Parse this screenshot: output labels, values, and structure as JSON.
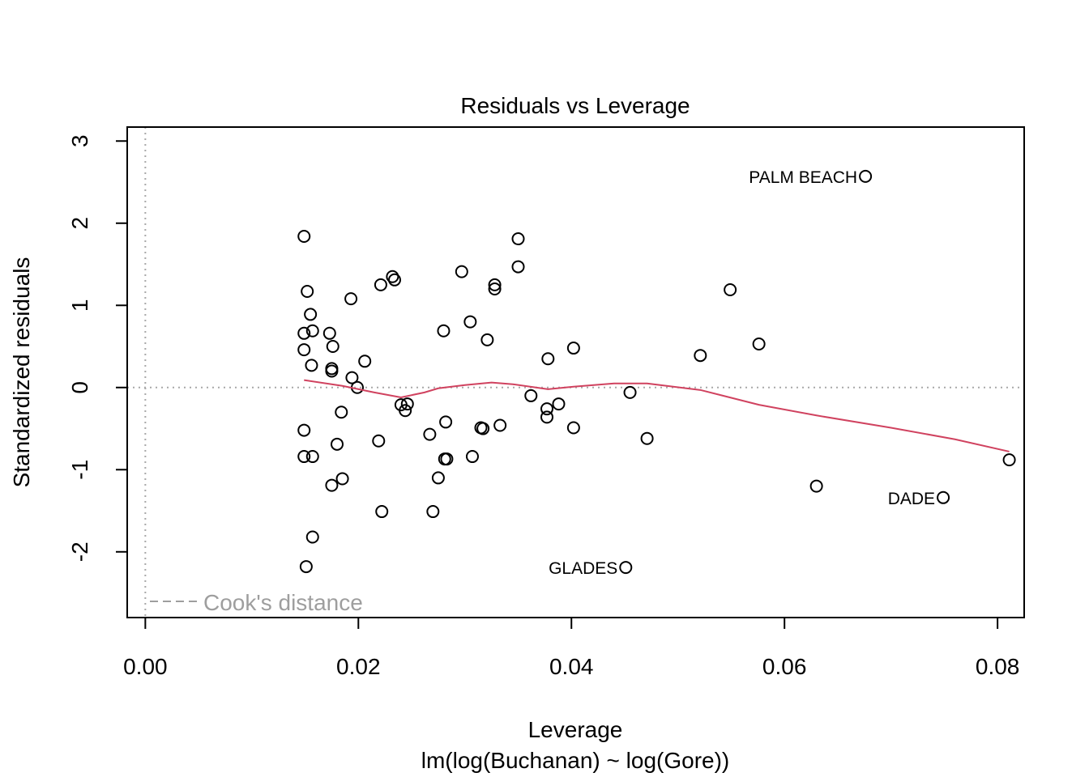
{
  "chart_data": {
    "type": "scatter",
    "title": "Residuals vs Leverage",
    "xlabel": "Leverage",
    "ylabel": "Standardized residuals",
    "subtitle": "lm(log(Buchanan) ~ log(Gore))",
    "xlim": [
      -0.0017,
      0.0825
    ],
    "ylim": [
      -2.8,
      3.17
    ],
    "x_ticks": [
      0.0,
      0.02,
      0.04,
      0.06,
      0.08
    ],
    "x_tick_labels": [
      "0.00",
      "0.02",
      "0.04",
      "0.06",
      "0.08"
    ],
    "y_ticks": [
      -2,
      -1,
      0,
      1,
      2,
      3
    ],
    "y_tick_labels": [
      "-2",
      "-1",
      "0",
      "1",
      "2",
      "3"
    ],
    "grid": false,
    "reference_lines": {
      "horizontal_y": 0,
      "vertical_x": 0,
      "style": "dotted",
      "color": "#a8a8a8"
    },
    "legend": {
      "label": "Cook's distance",
      "placement": "bottom-left",
      "color": "#9e9e9e",
      "line_style": "dashed"
    },
    "point_color": "#000000",
    "smooth_color": "#d0425f",
    "points": [
      {
        "x": 0.0149,
        "y": 1.84
      },
      {
        "x": 0.0152,
        "y": 1.17
      },
      {
        "x": 0.0155,
        "y": 0.89
      },
      {
        "x": 0.0149,
        "y": 0.66
      },
      {
        "x": 0.0157,
        "y": 0.69
      },
      {
        "x": 0.0149,
        "y": 0.46
      },
      {
        "x": 0.0156,
        "y": 0.27
      },
      {
        "x": 0.0173,
        "y": 0.66
      },
      {
        "x": 0.0176,
        "y": 0.5
      },
      {
        "x": 0.0175,
        "y": 0.23
      },
      {
        "x": 0.0175,
        "y": 0.2
      },
      {
        "x": 0.0193,
        "y": 1.08
      },
      {
        "x": 0.0206,
        "y": 0.32
      },
      {
        "x": 0.0194,
        "y": 0.12
      },
      {
        "x": 0.0199,
        "y": 0.0
      },
      {
        "x": 0.0149,
        "y": -0.52
      },
      {
        "x": 0.0149,
        "y": -0.84
      },
      {
        "x": 0.0157,
        "y": -0.84
      },
      {
        "x": 0.0184,
        "y": -0.3
      },
      {
        "x": 0.018,
        "y": -0.69
      },
      {
        "x": 0.0175,
        "y": -1.19
      },
      {
        "x": 0.0185,
        "y": -1.11
      },
      {
        "x": 0.0157,
        "y": -1.82
      },
      {
        "x": 0.0151,
        "y": -2.18
      },
      {
        "x": 0.0221,
        "y": 1.25
      },
      {
        "x": 0.0232,
        "y": 1.35
      },
      {
        "x": 0.0234,
        "y": 1.31
      },
      {
        "x": 0.0219,
        "y": -0.65
      },
      {
        "x": 0.0222,
        "y": -1.51
      },
      {
        "x": 0.024,
        "y": -0.21
      },
      {
        "x": 0.0246,
        "y": -0.2
      },
      {
        "x": 0.0244,
        "y": -0.28
      },
      {
        "x": 0.0297,
        "y": 1.41
      },
      {
        "x": 0.028,
        "y": 0.69
      },
      {
        "x": 0.0305,
        "y": 0.8
      },
      {
        "x": 0.0321,
        "y": 0.58
      },
      {
        "x": 0.0328,
        "y": 1.25
      },
      {
        "x": 0.0328,
        "y": 1.2
      },
      {
        "x": 0.035,
        "y": 1.81
      },
      {
        "x": 0.035,
        "y": 1.47
      },
      {
        "x": 0.0282,
        "y": -0.42
      },
      {
        "x": 0.0267,
        "y": -0.57
      },
      {
        "x": 0.0281,
        "y": -0.87
      },
      {
        "x": 0.0283,
        "y": -0.87
      },
      {
        "x": 0.0275,
        "y": -1.1
      },
      {
        "x": 0.027,
        "y": -1.51
      },
      {
        "x": 0.0307,
        "y": -0.84
      },
      {
        "x": 0.0315,
        "y": -0.49
      },
      {
        "x": 0.0317,
        "y": -0.5
      },
      {
        "x": 0.0333,
        "y": -0.46
      },
      {
        "x": 0.0362,
        "y": -0.1
      },
      {
        "x": 0.0377,
        "y": -0.26
      },
      {
        "x": 0.0377,
        "y": -0.36
      },
      {
        "x": 0.0388,
        "y": -0.2
      },
      {
        "x": 0.0378,
        "y": 0.35
      },
      {
        "x": 0.0402,
        "y": 0.48
      },
      {
        "x": 0.0402,
        "y": -0.49
      },
      {
        "x": 0.0455,
        "y": -0.06
      },
      {
        "x": 0.0471,
        "y": -0.62
      },
      {
        "x": 0.0521,
        "y": 0.39
      },
      {
        "x": 0.0549,
        "y": 1.19
      },
      {
        "x": 0.0576,
        "y": 0.53
      },
      {
        "x": 0.063,
        "y": -1.2
      },
      {
        "x": 0.0811,
        "y": -0.88
      },
      {
        "x": 0.0676,
        "y": 2.57,
        "label": "PALM BEACH"
      },
      {
        "x": 0.0749,
        "y": -1.34,
        "label": "DADE"
      },
      {
        "x": 0.0451,
        "y": -2.19,
        "label": "GLADES"
      }
    ],
    "smooth_line": [
      {
        "x": 0.0149,
        "y": 0.09
      },
      {
        "x": 0.0185,
        "y": 0.02
      },
      {
        "x": 0.0215,
        "y": -0.06
      },
      {
        "x": 0.024,
        "y": -0.12
      },
      {
        "x": 0.0262,
        "y": -0.06
      },
      {
        "x": 0.0275,
        "y": -0.01
      },
      {
        "x": 0.03,
        "y": 0.03
      },
      {
        "x": 0.0325,
        "y": 0.06
      },
      {
        "x": 0.0345,
        "y": 0.04
      },
      {
        "x": 0.0378,
        "y": -0.02
      },
      {
        "x": 0.0402,
        "y": 0.01
      },
      {
        "x": 0.044,
        "y": 0.05
      },
      {
        "x": 0.0471,
        "y": 0.05
      },
      {
        "x": 0.0521,
        "y": -0.03
      },
      {
        "x": 0.0576,
        "y": -0.21
      },
      {
        "x": 0.063,
        "y": -0.34
      },
      {
        "x": 0.07,
        "y": -0.49
      },
      {
        "x": 0.076,
        "y": -0.63
      },
      {
        "x": 0.0811,
        "y": -0.78
      }
    ]
  }
}
